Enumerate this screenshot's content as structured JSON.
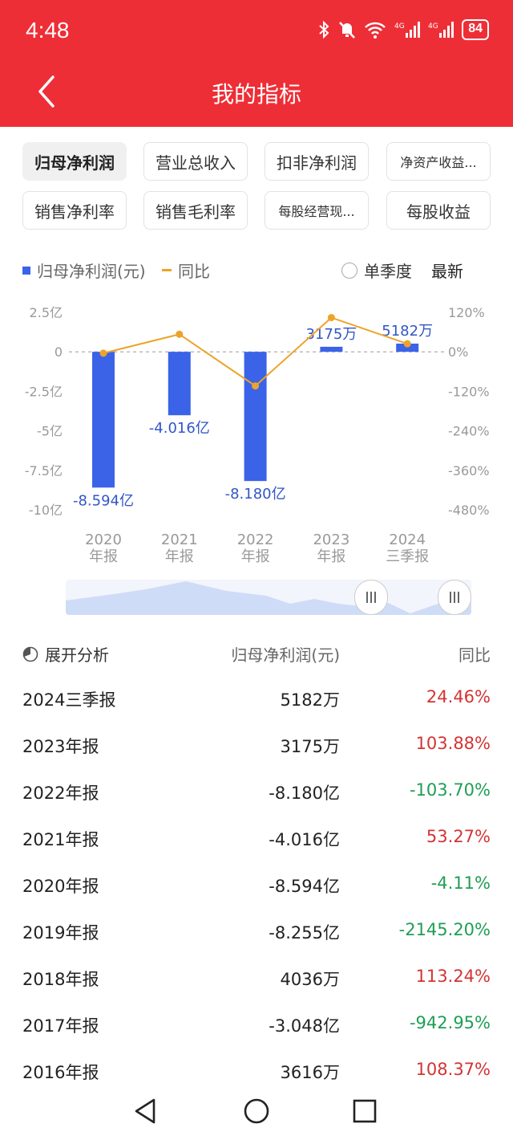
{
  "status_bar": {
    "time": "4:48",
    "battery": "84"
  },
  "nav": {
    "title": "我的指标",
    "back_icon": "back-arrow-icon"
  },
  "chips": [
    {
      "label": "归母净利润",
      "active": true
    },
    {
      "label": "营业总收入",
      "active": false
    },
    {
      "label": "扣非净利润",
      "active": false
    },
    {
      "label": "净资产收益...",
      "active": false
    },
    {
      "label": "销售净利率",
      "active": false
    },
    {
      "label": "销售毛利率",
      "active": false
    },
    {
      "label": "每股经营现...",
      "active": false
    },
    {
      "label": "每股收益",
      "active": false
    }
  ],
  "legend": {
    "bar_label": "归母净利润(元)",
    "line_label": "同比",
    "quarter_label": "单季度",
    "latest_label": "最新"
  },
  "colors": {
    "header": "#ee2e36",
    "bar": "#3a63e8",
    "line": "#eda32a",
    "positive": "#d33434",
    "negative": "#1f9e55"
  },
  "chart_data": {
    "type": "bar",
    "categories": [
      [
        "2020",
        "年报"
      ],
      [
        "2021",
        "年报"
      ],
      [
        "2022",
        "年报"
      ],
      [
        "2023",
        "年报"
      ],
      [
        "2024",
        "三季报"
      ]
    ],
    "series": [
      {
        "name": "归母净利润(元)",
        "type": "bar",
        "values": [
          -8.594,
          -4.016,
          -8.18,
          0.3175,
          0.5182
        ],
        "labels": [
          "-8.594亿",
          "-4.016亿",
          "-8.180亿",
          "3175万",
          "5182万"
        ]
      },
      {
        "name": "同比",
        "type": "line",
        "values": [
          -4.11,
          53.27,
          -103.7,
          103.88,
          24.46
        ]
      }
    ],
    "y_left": {
      "ticks": [
        "2.5亿",
        "0",
        "-2.5亿",
        "-5亿",
        "-7.5亿",
        "-10亿"
      ],
      "range": [
        -10,
        2.5
      ]
    },
    "y_right": {
      "ticks": [
        "120%",
        "0%",
        "-120%",
        "-240%",
        "-360%",
        "-480%"
      ],
      "range": [
        -480,
        120
      ]
    }
  },
  "table": {
    "header": {
      "expand": "展开分析",
      "col_value": "归母净利润(元)",
      "col_yoy": "同比"
    },
    "rows": [
      {
        "period": "2024三季报",
        "value": "5182万",
        "yoy": "24.46%",
        "trend": "pos"
      },
      {
        "period": "2023年报",
        "value": "3175万",
        "yoy": "103.88%",
        "trend": "pos"
      },
      {
        "period": "2022年报",
        "value": "-8.180亿",
        "yoy": "-103.70%",
        "trend": "neg"
      },
      {
        "period": "2021年报",
        "value": "-4.016亿",
        "yoy": "53.27%",
        "trend": "pos"
      },
      {
        "period": "2020年报",
        "value": "-8.594亿",
        "yoy": "-4.11%",
        "trend": "neg"
      },
      {
        "period": "2019年报",
        "value": "-8.255亿",
        "yoy": "-2145.20%",
        "trend": "neg"
      },
      {
        "period": "2018年报",
        "value": "4036万",
        "yoy": "113.24%",
        "trend": "pos"
      },
      {
        "period": "2017年报",
        "value": "-3.048亿",
        "yoy": "-942.95%",
        "trend": "neg"
      },
      {
        "period": "2016年报",
        "value": "3616万",
        "yoy": "108.37%",
        "trend": "pos"
      }
    ]
  }
}
